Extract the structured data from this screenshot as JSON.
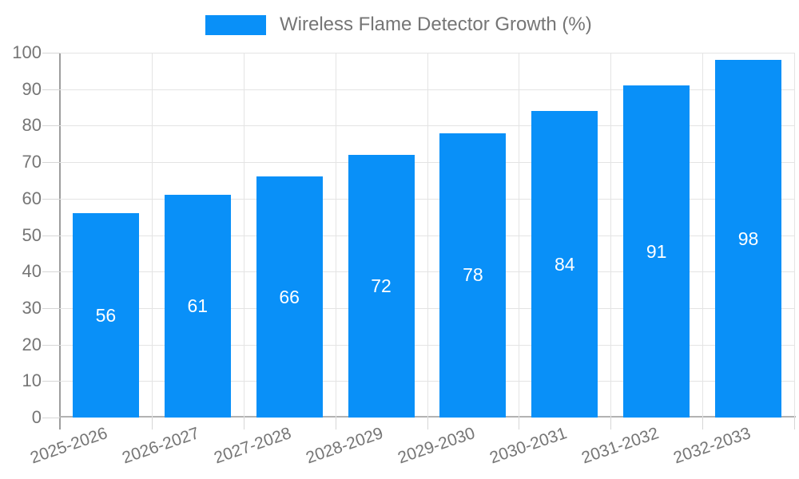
{
  "legend": {
    "label": "Wireless Flame Detector Growth (%)"
  },
  "chart_data": {
    "type": "bar",
    "title": "",
    "series_name": "Wireless Flame Detector Growth (%)",
    "categories": [
      "2025-2026",
      "2026-2027",
      "2027-2028",
      "2028-2029",
      "2029-2030",
      "2030-2031",
      "2031-2032",
      "2032-2033"
    ],
    "values": [
      56,
      61,
      66,
      72,
      78,
      84,
      91,
      98
    ],
    "value_labels": [
      "56",
      "61",
      "66",
      "72",
      "78",
      "84",
      "91",
      "98"
    ],
    "xlabel": "",
    "ylabel": "",
    "ylim": [
      0,
      100
    ],
    "yticks": [
      0,
      10,
      20,
      30,
      40,
      50,
      60,
      70,
      80,
      90,
      100
    ],
    "grid": true,
    "legend_position": "top",
    "x_label_rotation_deg": -19,
    "colors": {
      "bar": "#0990f8",
      "bar_value_text": "#ffffff",
      "axis_text": "#757575",
      "gridline": "#e4e4e4",
      "axis_line": "#9e9e9e"
    }
  }
}
